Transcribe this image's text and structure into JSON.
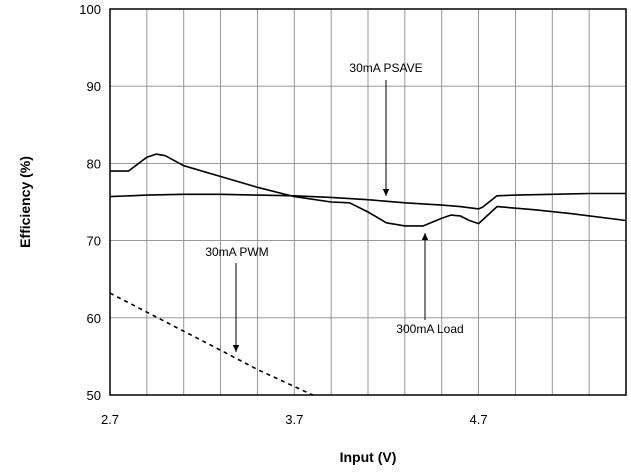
{
  "chart_data": {
    "type": "line",
    "title": "",
    "xlabel": "Input (V)",
    "ylabel": "Efficiency (%)",
    "xlim": [
      2.7,
      5.5
    ],
    "ylim": [
      50,
      100
    ],
    "x_ticks": [
      2.7,
      3.7,
      4.7
    ],
    "x_tick_labels": [
      "2.7",
      "3.7",
      "4.7"
    ],
    "x_grid_step": 0.2,
    "y_ticks": [
      50,
      60,
      70,
      80,
      90,
      100
    ],
    "y_tick_labels": [
      "50",
      "60",
      "70",
      "80",
      "90",
      "100"
    ],
    "grid": true,
    "legend": "none",
    "series": [
      {
        "label": "30mA PSAVE",
        "style": "solid",
        "color": "#000000",
        "x": [
          2.7,
          2.9,
          3.1,
          3.3,
          3.5,
          3.7,
          3.9,
          4.1,
          4.3,
          4.5,
          4.6,
          4.7,
          4.72,
          4.8,
          4.9,
          5.1,
          5.3,
          5.5
        ],
        "y": [
          75.7,
          75.9,
          76.0,
          76.0,
          75.9,
          75.8,
          75.6,
          75.3,
          74.9,
          74.6,
          74.4,
          74.1,
          74.3,
          75.8,
          75.9,
          76.0,
          76.1,
          76.1
        ]
      },
      {
        "label": "300mA Load",
        "style": "solid",
        "color": "#000000",
        "x": [
          2.7,
          2.8,
          2.9,
          2.95,
          3.0,
          3.1,
          3.3,
          3.5,
          3.7,
          3.9,
          4.0,
          4.1,
          4.2,
          4.3,
          4.4,
          4.5,
          4.55,
          4.6,
          4.65,
          4.7,
          4.8,
          5.0,
          5.2,
          5.5
        ],
        "y": [
          79.0,
          79.0,
          80.8,
          81.2,
          81.0,
          79.7,
          78.3,
          76.9,
          75.7,
          75.0,
          74.9,
          73.7,
          72.3,
          71.9,
          71.9,
          72.9,
          73.3,
          73.2,
          72.6,
          72.2,
          74.4,
          74.0,
          73.5,
          72.6
        ]
      },
      {
        "label": "30mA PWM",
        "style": "dashed",
        "color": "#000000",
        "x": [
          2.7,
          3.0,
          3.3,
          3.5,
          3.8
        ],
        "y": [
          63.2,
          59.5,
          55.8,
          53.3,
          50.0
        ]
      }
    ],
    "annotations": [
      {
        "text": "30mA PSAVE"
      },
      {
        "text": "300mA Load"
      },
      {
        "text": "30mA PWM"
      }
    ]
  }
}
